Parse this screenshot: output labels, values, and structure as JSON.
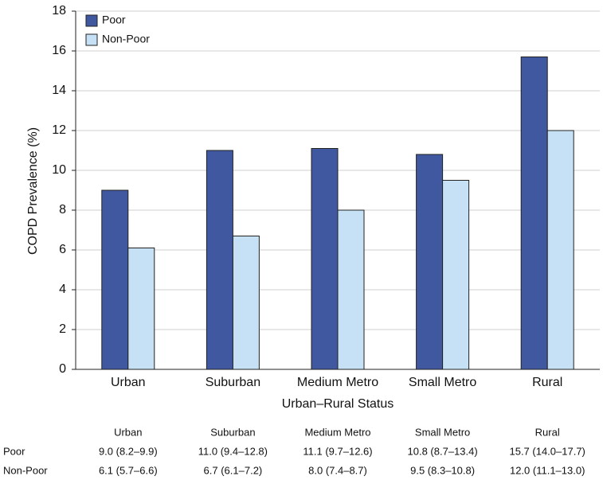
{
  "chart_data": {
    "type": "bar",
    "y_label": "COPD Prevalence (%)",
    "x_label": "Urban–Rural Status",
    "categories": [
      "Urban",
      "Suburban",
      "Medium Metro",
      "Small Metro",
      "Rural"
    ],
    "series": [
      {
        "name": "Poor",
        "color": "#3f58a0",
        "values": [
          9.0,
          11.0,
          11.1,
          10.8,
          15.7
        ]
      },
      {
        "name": "Non-Poor",
        "color": "#c6e1f6",
        "values": [
          6.1,
          6.7,
          8.0,
          9.5,
          12.0
        ]
      }
    ],
    "ylim": [
      0,
      18
    ],
    "yticks": [
      0,
      2,
      4,
      6,
      8,
      10,
      12,
      14,
      16,
      18
    ],
    "grid": true,
    "legend": "top-left"
  },
  "table": {
    "header": [
      "Urban",
      "Suburban",
      "Medium Metro",
      "Small Metro",
      "Rural"
    ],
    "rows": [
      {
        "label": "Poor",
        "cells": [
          "9.0 (8.2–9.9)",
          "11.0 (9.4–12.8)",
          "11.1 (9.7–12.6)",
          "10.8 (8.7–13.4)",
          "15.7 (14.0–17.7)"
        ]
      },
      {
        "label": "Non-Poor",
        "cells": [
          "6.1 (5.7–6.6)",
          "6.7 (6.1–7.2)",
          "8.0 (7.4–8.7)",
          "9.5 (8.3–10.8)",
          "12.0 (11.1–13.0)"
        ]
      }
    ]
  }
}
